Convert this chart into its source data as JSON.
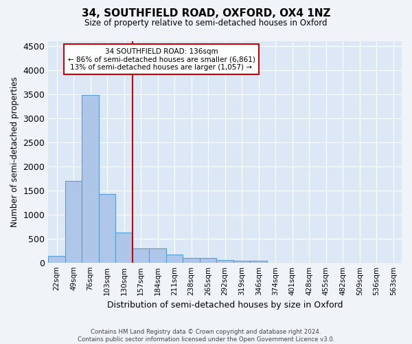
{
  "title": "34, SOUTHFIELD ROAD, OXFORD, OX4 1NZ",
  "subtitle": "Size of property relative to semi-detached houses in Oxford",
  "xlabel": "Distribution of semi-detached houses by size in Oxford",
  "ylabel": "Number of semi-detached properties",
  "bar_values": [
    140,
    1700,
    3480,
    1430,
    620,
    290,
    290,
    160,
    100,
    90,
    55,
    40,
    40,
    0,
    0,
    0,
    0,
    0,
    0,
    0,
    0
  ],
  "categories": [
    "22sqm",
    "49sqm",
    "76sqm",
    "103sqm",
    "130sqm",
    "157sqm",
    "184sqm",
    "211sqm",
    "238sqm",
    "265sqm",
    "292sqm",
    "319sqm",
    "346sqm",
    "374sqm",
    "401sqm",
    "428sqm",
    "455sqm",
    "482sqm",
    "509sqm",
    "536sqm",
    "563sqm"
  ],
  "bar_color": "#aec6e8",
  "bar_edge_color": "#5a9fd4",
  "background_color": "#dce8f5",
  "grid_color": "#ffffff",
  "vline_x": 4.5,
  "vline_color": "#cc0000",
  "annotation_box_text": "34 SOUTHFIELD ROAD: 136sqm\n← 86% of semi-detached houses are smaller (6,861)\n13% of semi-detached houses are larger (1,057) →",
  "annotation_box_color": "#cc0000",
  "footer": "Contains HM Land Registry data © Crown copyright and database right 2024.\nContains public sector information licensed under the Open Government Licence v3.0.",
  "ylim": [
    0,
    4600
  ],
  "yticks": [
    0,
    500,
    1000,
    1500,
    2000,
    2500,
    3000,
    3500,
    4000,
    4500
  ]
}
